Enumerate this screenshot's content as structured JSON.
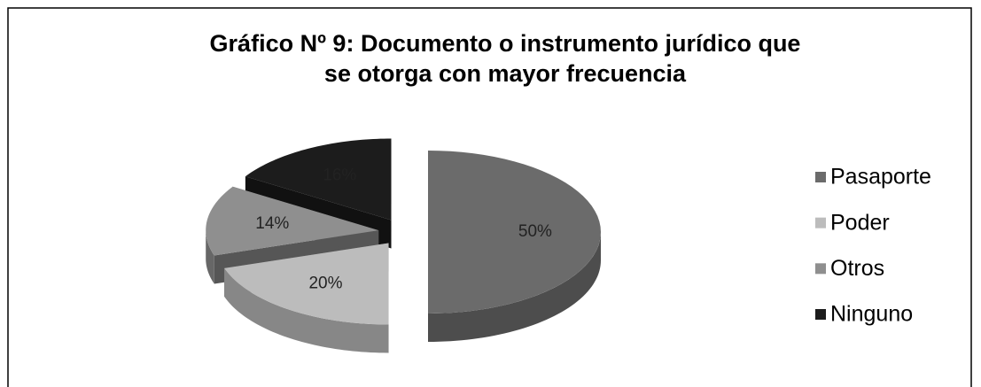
{
  "chart_data": {
    "type": "pie3d",
    "title": "Gráfico Nº 9: Documento o instrumento jurídico que se otorga con mayor frecuencia",
    "categories": [
      "Pasaporte",
      "Poder",
      "Otros",
      "Ninguno"
    ],
    "values": [
      50,
      20,
      14,
      16
    ],
    "value_labels": [
      "50%",
      "20%",
      "14%",
      "16%"
    ],
    "colors": [
      "#6b6b6b",
      "#bcbcbc",
      "#8f8f8f",
      "#1c1c1c"
    ],
    "legend": "right"
  }
}
